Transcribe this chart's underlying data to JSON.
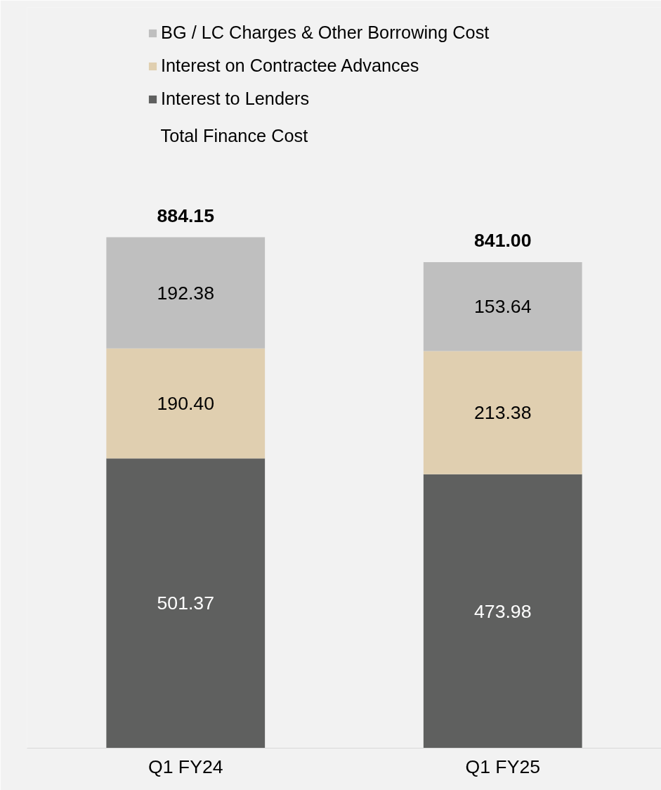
{
  "chart_data": {
    "type": "bar",
    "stacked": true,
    "categories": [
      "Q1 FY24",
      "Q1 FY25"
    ],
    "series": [
      {
        "name": "Interest to Lenders",
        "color": "#5f605f",
        "values": [
          501.37,
          473.98
        ],
        "value_labels": [
          "501.37",
          "473.98"
        ]
      },
      {
        "name": "Interest on Contractee Advances",
        "color": "#e0cfb0",
        "values": [
          190.4,
          213.38
        ],
        "value_labels": [
          "190.40",
          "213.38"
        ]
      },
      {
        "name": "BG / LC Charges & Other Borrowing Cost",
        "color": "#bfbfbf",
        "values": [
          192.38,
          153.64
        ],
        "value_labels": [
          "192.38",
          "153.64"
        ]
      }
    ],
    "data_labels": true,
    "totals": [
      "884.15",
      "841.00"
    ],
    "legend": "top",
    "grid": false,
    "annotations": [
      "Total Finance Cost"
    ]
  }
}
